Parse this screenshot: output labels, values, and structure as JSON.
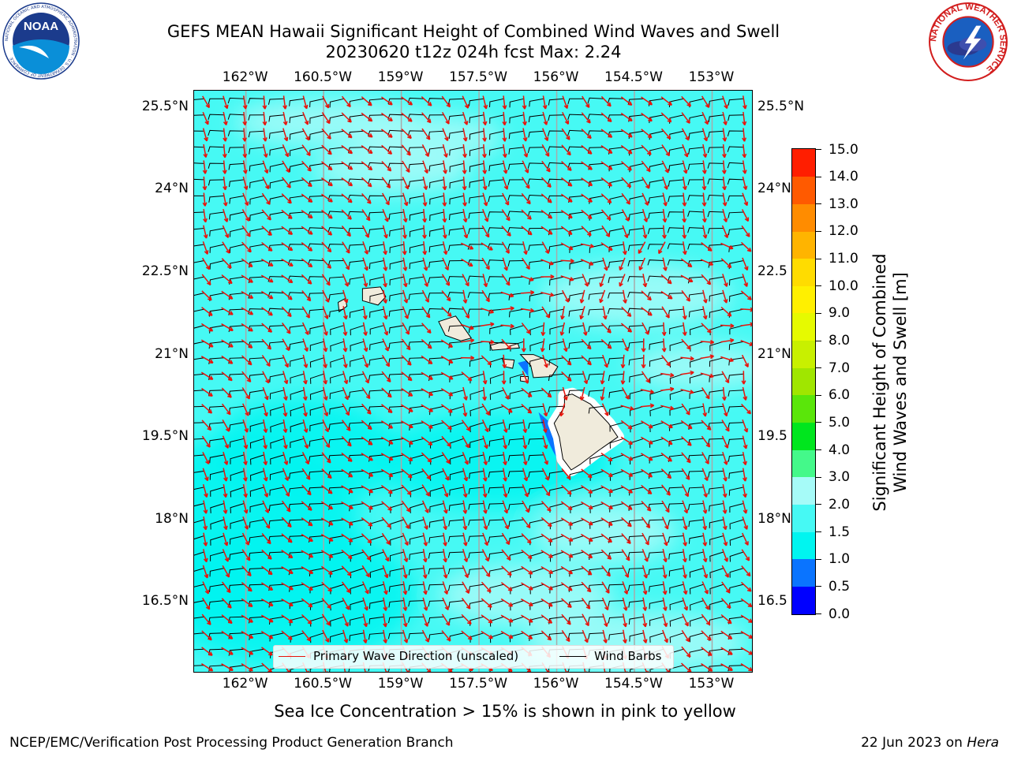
{
  "header": {
    "title_line1": "GEFS MEAN Hawaii Significant Height of Combined Wind Waves and Swell",
    "title_line2": "20230620 t12z 024h fcst   Max: 2.24"
  },
  "logos": {
    "noaa_text": "NOAA",
    "noaa_ring_text": "NATIONAL OCEANIC AND ATMOSPHERIC ADMINISTRATION · U.S. DEPARTMENT OF COMMERCE",
    "nws_ring_text": "NATIONAL WEATHER SERVICE"
  },
  "map": {
    "lon_ticks": [
      "162°W",
      "160.5°W",
      "159°W",
      "157.5°W",
      "156°W",
      "154.5°W",
      "153°W"
    ],
    "lat_ticks": [
      "25.5°N",
      "24°N",
      "22.5°N",
      "21°N",
      "19.5°N",
      "18°N",
      "16.5°N"
    ],
    "right_lat_ticks": [
      "25.5°N",
      "24°N",
      "22.5",
      "21°N",
      "19.5",
      "18°N",
      "16.5"
    ],
    "lon_range": [
      -163,
      -152.2
    ],
    "lat_range": [
      15.2,
      25.8
    ],
    "colors": {
      "sea_base": "#46f9f4",
      "sea_light": "#a6fbf8",
      "sea_dark": "#00f5f0",
      "land": "#f0ebdc",
      "wave_arrow": "#e8140c",
      "wind_barb": "#000000",
      "gridline": "#a9a9a9"
    }
  },
  "legend": {
    "wave_label": "Primary Wave Direction (unscaled)",
    "barb_label": "Wind Barbs"
  },
  "colorbar": {
    "label_line1": "Significant Height of Combined",
    "label_line2": "Wind Waves and Swell [m]",
    "ticks": [
      "0.0",
      "0.5",
      "1.0",
      "1.5",
      "2.0",
      "3.0",
      "4.0",
      "5.0",
      "6.0",
      "7.0",
      "8.0",
      "9.0",
      "10.0",
      "11.0",
      "12.0",
      "13.0",
      "14.0",
      "15.0"
    ],
    "colors": [
      "#0000ff",
      "#0a74ff",
      "#00f5f0",
      "#46f9f4",
      "#a6fbf8",
      "#44f98a",
      "#00e61e",
      "#5ae60a",
      "#a0e600",
      "#c8f000",
      "#e6fa00",
      "#fff000",
      "#ffdc00",
      "#ffb400",
      "#ff8c00",
      "#ff5a00",
      "#ff1e00"
    ]
  },
  "notes": {
    "sea_ice": "Sea Ice Concentration > 15% is shown in pink to yellow",
    "footer_left": "NCEP/EMC/Verification Post Processing Product Generation Branch",
    "footer_date": "22 Jun 2023 on ",
    "footer_host": "Hera"
  }
}
